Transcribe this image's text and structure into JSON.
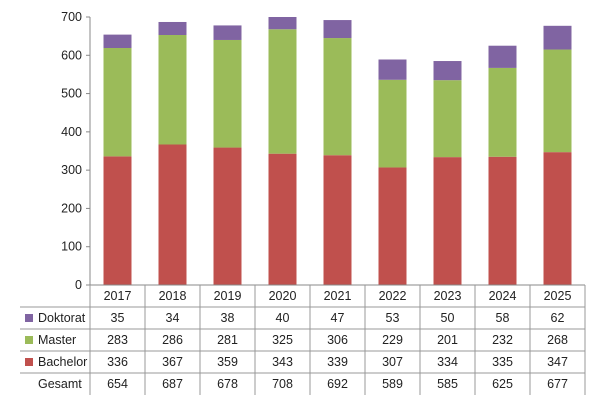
{
  "chart_data": {
    "type": "bar",
    "stacked": true,
    "title": "",
    "xlabel": "",
    "ylabel": "",
    "ylim": [
      0,
      700
    ],
    "yticks": [
      0,
      100,
      200,
      300,
      400,
      500,
      600,
      700
    ],
    "grid": false,
    "legend": "data-table",
    "categories": [
      "2017",
      "2018",
      "2019",
      "2020",
      "2021",
      "2022",
      "2023",
      "2024",
      "2025"
    ],
    "series": [
      {
        "name": "Bachelor",
        "color": "#C0504D",
        "values": [
          336,
          367,
          359,
          343,
          339,
          307,
          334,
          335,
          347
        ]
      },
      {
        "name": "Master",
        "color": "#9BBB59",
        "values": [
          283,
          286,
          281,
          325,
          306,
          229,
          201,
          232,
          268
        ]
      },
      {
        "name": "Doktorat",
        "color": "#8064A2",
        "values": [
          35,
          34,
          38,
          40,
          47,
          53,
          50,
          58,
          62
        ]
      }
    ],
    "table_row_order": [
      "Doktorat",
      "Master",
      "Bachelor"
    ],
    "total_label": "Gesamt",
    "totals": [
      654,
      687,
      678,
      708,
      692,
      589,
      585,
      625,
      677
    ]
  }
}
